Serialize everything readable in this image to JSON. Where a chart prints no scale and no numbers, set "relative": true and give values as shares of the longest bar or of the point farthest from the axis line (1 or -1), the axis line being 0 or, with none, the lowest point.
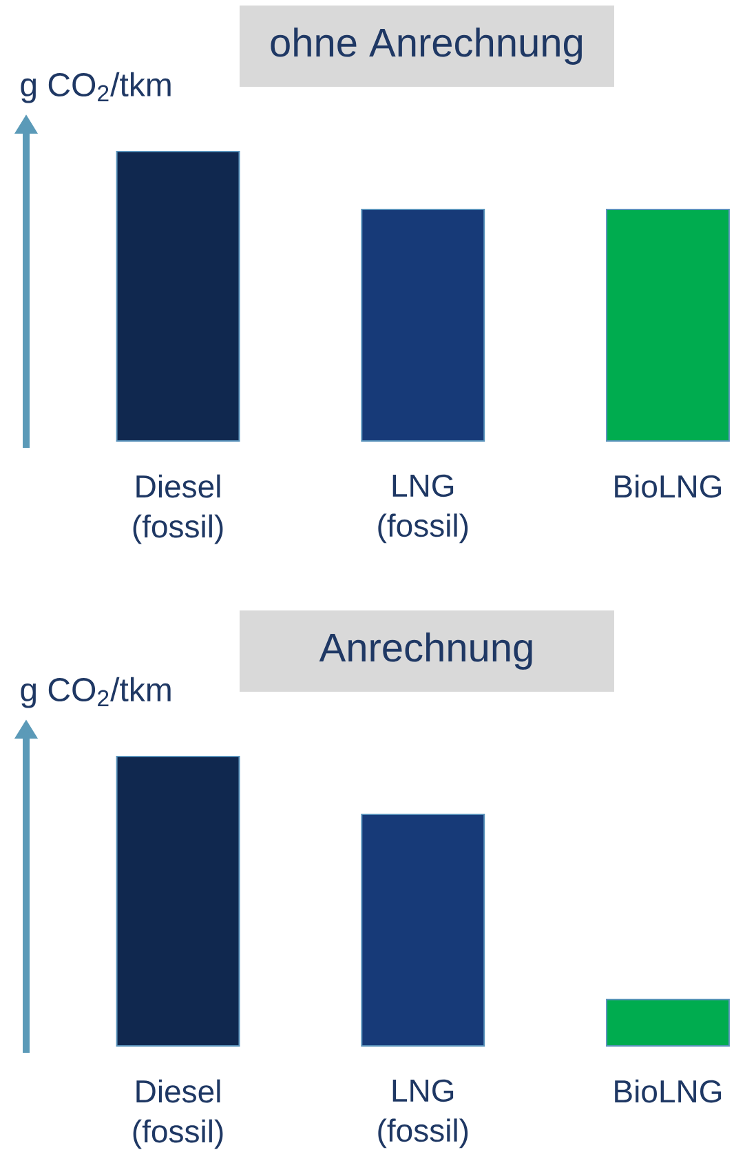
{
  "chart_data": [
    {
      "type": "bar",
      "title": "ohne Anrechnung",
      "ylabel": "g CO$_{2}$/tkm",
      "categories": [
        "Diesel (fossil)",
        "LNG (fossil)",
        "BioLNG"
      ],
      "values": [
        1,
        0.8,
        0.8
      ],
      "colors": [
        "#10284f",
        "#173a78",
        "#00ac4f"
      ],
      "relative": true
    },
    {
      "type": "bar",
      "title": "Anrechnung",
      "ylabel": "g CO$_{2}$/tkm",
      "categories": [
        "Diesel (fossil)",
        "LNG (fossil)",
        "BioLNG"
      ],
      "values": [
        1,
        0.8,
        0.16
      ],
      "colors": [
        "#10284f",
        "#173a78",
        "#00ac4f"
      ],
      "relative": true
    }
  ]
}
